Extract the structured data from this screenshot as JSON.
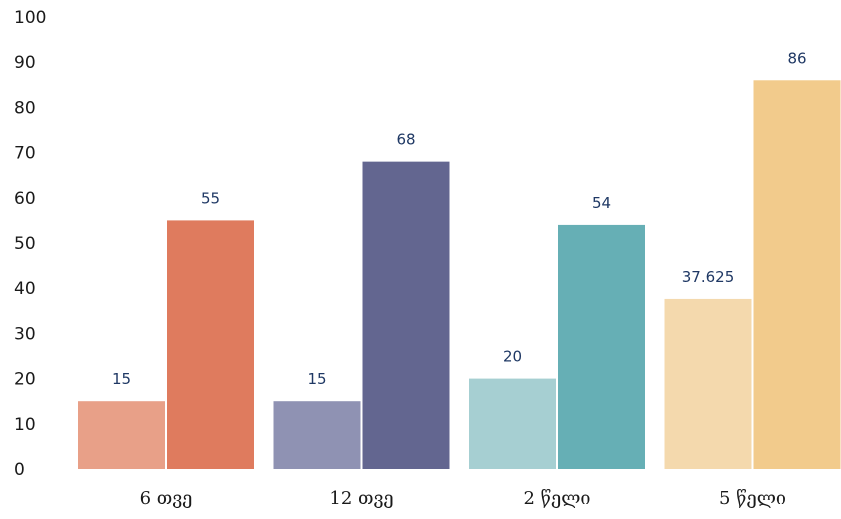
{
  "chart_data": {
    "type": "bar",
    "title": "",
    "xlabel": "",
    "ylabel": "",
    "ylim": [
      0,
      100
    ],
    "yticks": [
      0,
      10,
      20,
      30,
      40,
      50,
      60,
      70,
      80,
      90,
      100
    ],
    "grid": false,
    "legend": "none",
    "categories": [
      "6 თვე",
      "12 თვე",
      "2 წელი",
      "5 წელი"
    ],
    "series": [
      {
        "values": [
          15,
          15,
          20,
          37.625
        ]
      },
      {
        "values": [
          55,
          68,
          54,
          86
        ]
      }
    ],
    "data_labels": [
      [
        "15",
        "15",
        "20",
        "37.625"
      ],
      [
        "55",
        "68",
        "54",
        "86"
      ]
    ],
    "colors": [
      [
        "#e8a088",
        "#8f92b3",
        "#a6cfd2",
        "#f4d9ad"
      ],
      [
        "#df7b5e",
        "#636690",
        "#66afb5",
        "#f2cb8c"
      ]
    ]
  }
}
